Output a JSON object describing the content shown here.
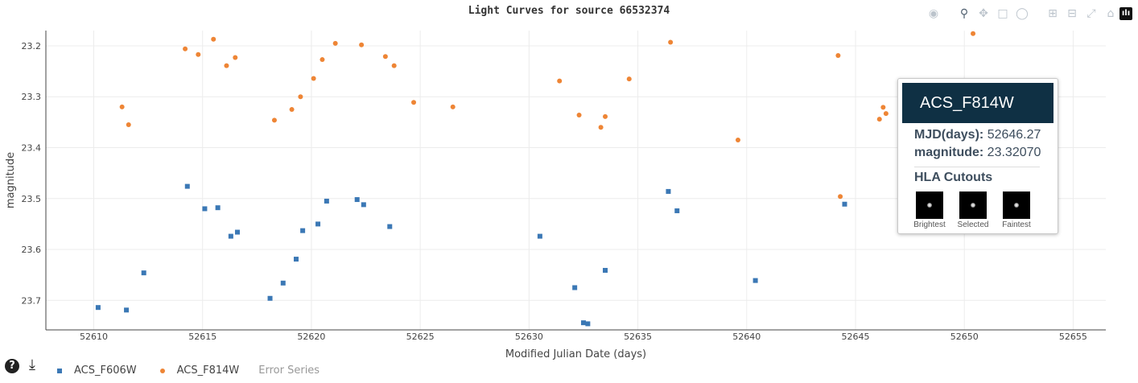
{
  "title": "Light Curves for source 66532374",
  "chart_data": {
    "type": "scatter",
    "title": "Light Curves for source 66532374",
    "xlabel": "Modified Julian Date (days)",
    "ylabel": "magnitude",
    "xlim": [
      52607.8,
      52656.5
    ],
    "ylim": [
      23.758,
      23.17
    ],
    "y_reversed": true,
    "x_ticks": [
      52610,
      52615,
      52620,
      52625,
      52630,
      52635,
      52640,
      52645,
      52650,
      52655
    ],
    "y_ticks": [
      "23.2",
      "23.3",
      "23.4",
      "23.5",
      "23.6",
      "23.7"
    ],
    "grid": true,
    "legend_position": "bottom-left",
    "series": [
      {
        "name": "ACS_F606W",
        "marker": "square",
        "color": "#3b78b5",
        "points": [
          [
            52610.2,
            23.714
          ],
          [
            52611.5,
            23.719
          ],
          [
            52612.3,
            23.646
          ],
          [
            52614.3,
            23.476
          ],
          [
            52615.1,
            23.52
          ],
          [
            52615.7,
            23.518
          ],
          [
            52616.3,
            23.574
          ],
          [
            52616.6,
            23.566
          ],
          [
            52618.1,
            23.696
          ],
          [
            52618.7,
            23.666
          ],
          [
            52619.3,
            23.619
          ],
          [
            52619.6,
            23.563
          ],
          [
            52620.3,
            23.55
          ],
          [
            52620.7,
            23.505
          ],
          [
            52622.1,
            23.502
          ],
          [
            52622.4,
            23.512
          ],
          [
            52623.6,
            23.555
          ],
          [
            52630.5,
            23.574
          ],
          [
            52632.1,
            23.675
          ],
          [
            52632.5,
            23.744
          ],
          [
            52632.7,
            23.746
          ],
          [
            52633.5,
            23.641
          ],
          [
            52636.4,
            23.486
          ],
          [
            52636.8,
            23.524
          ],
          [
            52640.4,
            23.661
          ],
          [
            52644.5,
            23.511
          ]
        ]
      },
      {
        "name": "ACS_F814W",
        "marker": "circle",
        "color": "#ee8535",
        "points": [
          [
            52611.3,
            23.32
          ],
          [
            52611.6,
            23.355
          ],
          [
            52614.2,
            23.206
          ],
          [
            52614.8,
            23.217
          ],
          [
            52615.5,
            23.187
          ],
          [
            52616.1,
            23.239
          ],
          [
            52616.5,
            23.223
          ],
          [
            52618.3,
            23.346
          ],
          [
            52619.1,
            23.325
          ],
          [
            52619.5,
            23.3
          ],
          [
            52620.1,
            23.264
          ],
          [
            52620.5,
            23.227
          ],
          [
            52621.1,
            23.195
          ],
          [
            52622.3,
            23.198
          ],
          [
            52623.4,
            23.221
          ],
          [
            52623.8,
            23.239
          ],
          [
            52624.7,
            23.311
          ],
          [
            52626.5,
            23.32
          ],
          [
            52631.4,
            23.269
          ],
          [
            52632.3,
            23.336
          ],
          [
            52633.3,
            23.36
          ],
          [
            52633.5,
            23.339
          ],
          [
            52634.6,
            23.265
          ],
          [
            52636.5,
            23.193
          ],
          [
            52639.6,
            23.385
          ],
          [
            52644.2,
            23.219
          ],
          [
            52644.3,
            23.496
          ],
          [
            52646.1,
            23.344
          ],
          [
            52646.27,
            23.3207
          ],
          [
            52646.4,
            23.333
          ],
          [
            52650.4,
            23.176
          ]
        ]
      },
      {
        "name": "Error Series",
        "visible": false,
        "points": []
      }
    ],
    "hover": {
      "series": "ACS_F814W",
      "mjd_label": "MJD(days):",
      "mjd_value": "52646.27",
      "mag_label": "magnitude:",
      "mag_value": "23.32070",
      "section_label": "HLA Cutouts",
      "cutouts": [
        "Brightest",
        "Selected",
        "Faintest"
      ]
    }
  },
  "modebar": {
    "buttons": [
      "camera-icon",
      "zoom-icon",
      "pan-icon",
      "box-select-icon",
      "lasso-icon",
      "zoom-in-icon",
      "zoom-out-icon",
      "autoscale-icon",
      "home-icon"
    ],
    "active": "zoom-icon"
  },
  "footer": {
    "help_glyph": "?",
    "download_glyph": "⤓",
    "logo_glyph": "ılı"
  }
}
